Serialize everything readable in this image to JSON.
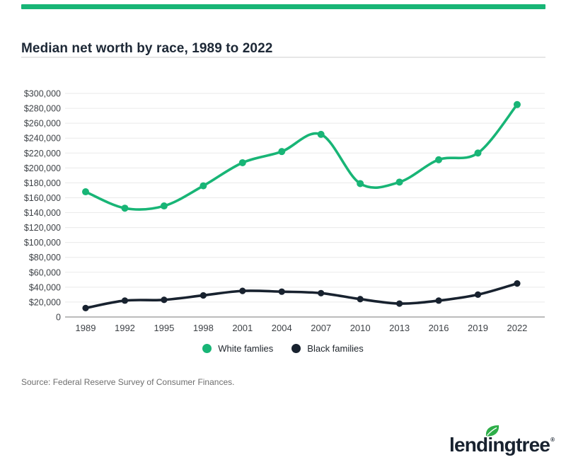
{
  "accent": {
    "color": "#18b576"
  },
  "header": {
    "title": "Median net worth by race, 1989 to 2022"
  },
  "chart_data": {
    "type": "line",
    "title": "Median net worth by race, 1989 to 2022",
    "xlabel": "",
    "ylabel": "",
    "categories": [
      "1989",
      "1992",
      "1995",
      "1998",
      "2001",
      "2004",
      "2007",
      "2010",
      "2013",
      "2016",
      "2019",
      "2022"
    ],
    "series": [
      {
        "name": "White famlies",
        "color": "#18b576",
        "values": [
          168000,
          146000,
          149000,
          176000,
          207000,
          222000,
          245000,
          179000,
          181000,
          211000,
          220000,
          285000
        ]
      },
      {
        "name": "Black families",
        "color": "#18222f",
        "values": [
          12000,
          22000,
          23000,
          29000,
          35000,
          34000,
          32000,
          24000,
          18000,
          22000,
          30000,
          45000
        ]
      }
    ],
    "ylim": [
      0,
      300000
    ],
    "ytick_step": 20000,
    "ytick_labels": [
      "0",
      "$20,000",
      "$40,000",
      "$60,000",
      "$80,000",
      "$100,000",
      "$120,000",
      "$140,000",
      "$160,000",
      "$180,000",
      "$200,000",
      "$220,000",
      "$240,000",
      "$260,000",
      "$280,000",
      "$300,000"
    ],
    "grid": true,
    "legend_position": "bottom",
    "grid_color": "#eaeaea",
    "axis_color": "#a6a6a6",
    "tick_label_color": "#3e4247"
  },
  "source": {
    "text": "Source: Federal Reserve Survey of Consumer Finances."
  },
  "logo": {
    "text": "lendingtree",
    "reg": "®",
    "leaf_color": "#2eae49",
    "text_color": "#18222f"
  }
}
